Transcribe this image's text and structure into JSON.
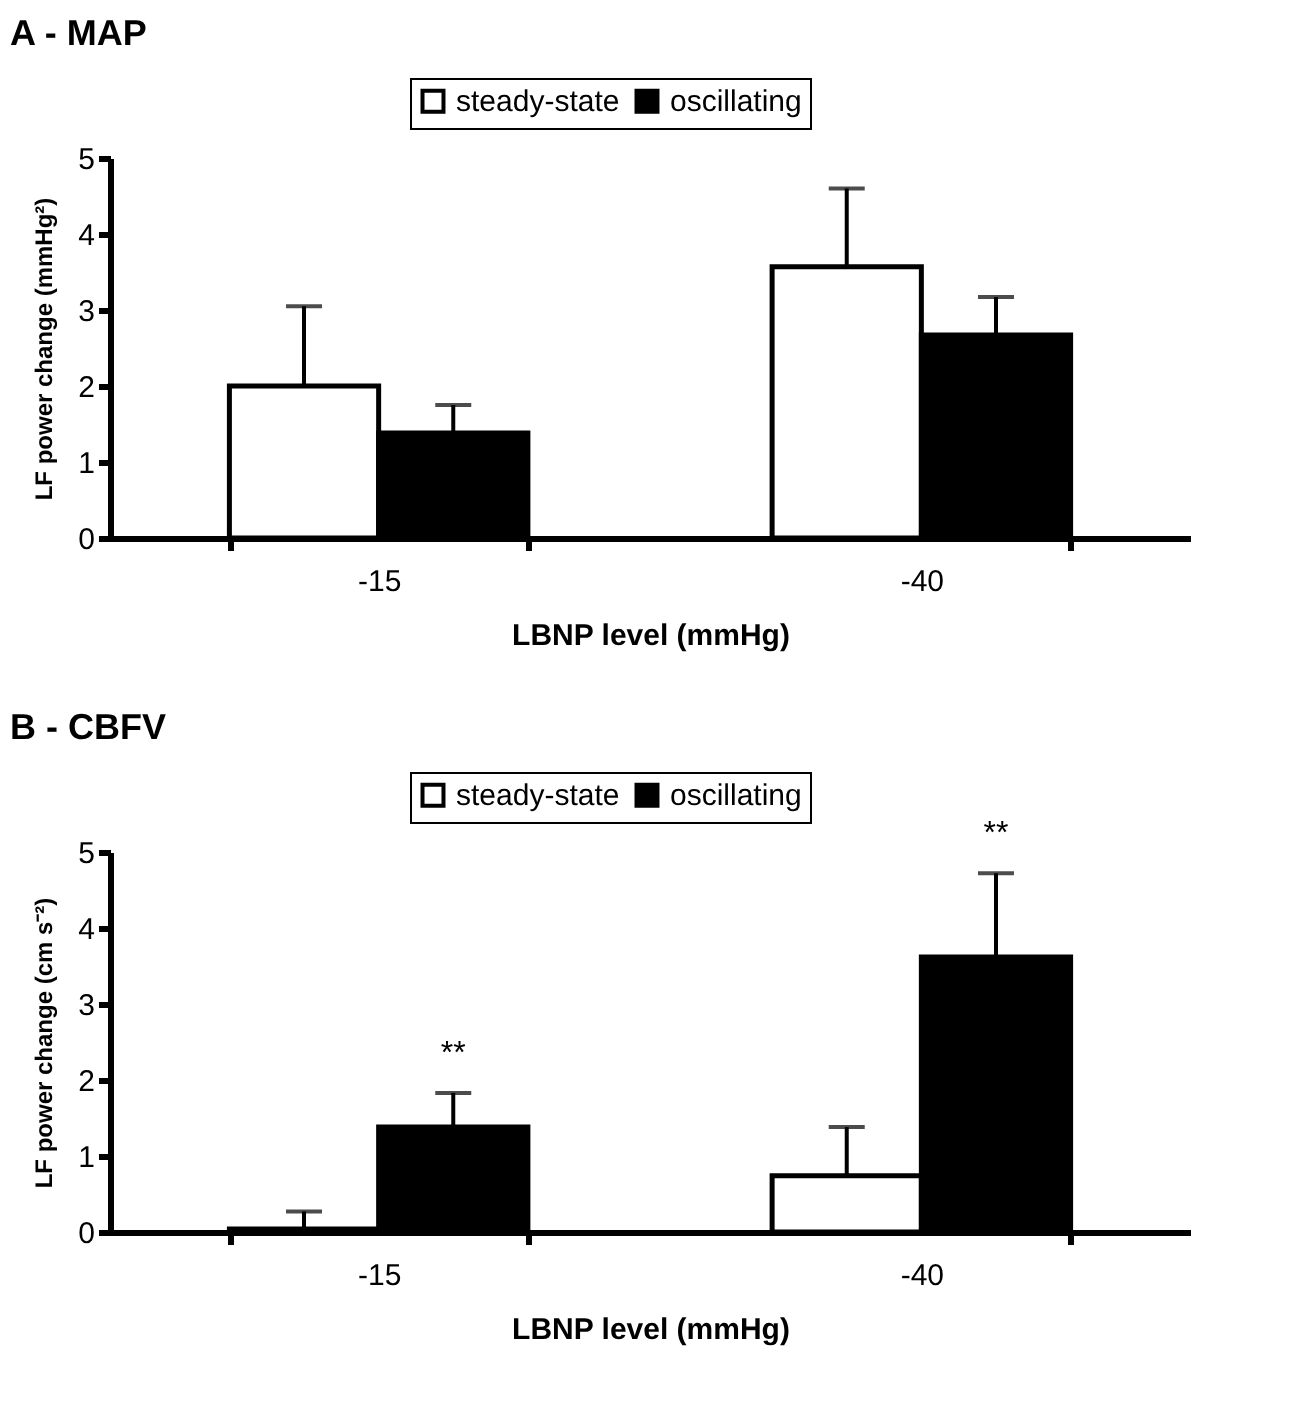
{
  "chart_data": [
    {
      "type": "bar",
      "title": "A - MAP",
      "xlabel": "LBNP level (mmHg)",
      "ylabel": "LF power change (mmHg²)",
      "categories": [
        "-15",
        "-40"
      ],
      "series": [
        {
          "name": "steady-state",
          "color": "#ffffff",
          "values": [
            2.0,
            3.57
          ],
          "errors": [
            [
              2.0,
              3.05
            ],
            [
              3.57,
              4.6
            ]
          ]
        },
        {
          "name": "oscillating",
          "color": "#000000",
          "values": [
            1.38,
            2.67
          ],
          "errors": [
            [
              1.38,
              1.75
            ],
            [
              2.67,
              3.17
            ]
          ]
        }
      ],
      "ylim": [
        0,
        5
      ],
      "yticks": [
        0,
        1,
        2,
        3,
        4,
        5
      ],
      "grid": false,
      "legend": "top"
    },
    {
      "type": "bar",
      "title": "B - CBFV",
      "xlabel": "LBNP level (mmHg)",
      "ylabel": "LF power change (cm s⁻²)",
      "categories": [
        "-15",
        "-40"
      ],
      "series": [
        {
          "name": "steady-state",
          "color": "#ffffff",
          "values": [
            0.04,
            0.74
          ],
          "errors": [
            [
              0.04,
              0.27
            ],
            [
              0.74,
              1.38
            ]
          ]
        },
        {
          "name": "oscillating",
          "color": "#000000",
          "values": [
            1.38,
            3.62
          ],
          "errors": [
            [
              1.38,
              1.83
            ],
            [
              3.62,
              4.72
            ]
          ]
        }
      ],
      "ylim": [
        0,
        5
      ],
      "yticks": [
        0,
        1,
        2,
        3,
        4,
        5
      ],
      "grid": false,
      "legend": "top",
      "annotations": [
        "**",
        "**"
      ]
    }
  ]
}
